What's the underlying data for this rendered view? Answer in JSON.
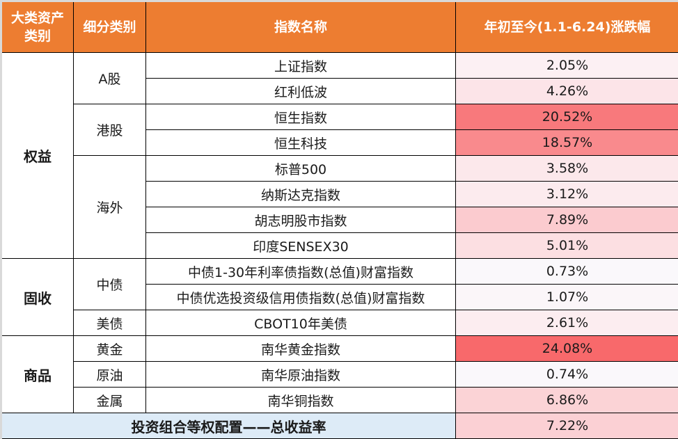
{
  "header": {
    "major_category": "大类资产类别",
    "major_category_line1": "大类资产",
    "major_category_line2": "类别",
    "sub_category": "细分类别",
    "index_name": "指数名称",
    "ytd_change": "年初至今(1.1-6.24)涨跌幅"
  },
  "groups": [
    {
      "major": "权益",
      "subs": [
        {
          "sub": "A股",
          "rows": [
            {
              "name": "上证指数",
              "value": "2.05%",
              "color": "#fcf0f3"
            },
            {
              "name": "红利低波",
              "value": "4.26%",
              "color": "#fce4e8"
            }
          ]
        },
        {
          "sub": "港股",
          "rows": [
            {
              "name": "恒生指数",
              "value": "20.52%",
              "color": "#f8797c"
            },
            {
              "name": "恒生科技",
              "value": "18.57%",
              "color": "#f98a8d"
            }
          ]
        },
        {
          "sub": "海外",
          "rows": [
            {
              "name": "标普500",
              "value": "3.58%",
              "color": "#fce8eb"
            },
            {
              "name": "纳斯达克指数",
              "value": "3.12%",
              "color": "#fcebee"
            },
            {
              "name": "胡志明股市指数",
              "value": "7.89%",
              "color": "#fbcbcf"
            },
            {
              "name": "印度SENSEX30",
              "value": "5.01%",
              "color": "#fcdfe2"
            }
          ]
        }
      ]
    },
    {
      "major": "固收",
      "subs": [
        {
          "sub": "中债",
          "rows": [
            {
              "name": "中债1-30年利率债指数(总值)财富指数",
              "value": "0.73%",
              "color": "#faf8fb"
            },
            {
              "name": "中债优选投资级信用债指数(总值)财富指数",
              "value": "1.07%",
              "color": "#fbf6f9"
            }
          ]
        },
        {
          "sub": "美债",
          "rows": [
            {
              "name": "CBOT10年美债",
              "value": "2.61%",
              "color": "#fcedf0"
            }
          ]
        }
      ]
    },
    {
      "major": "商品",
      "subs": [
        {
          "sub": "黄金",
          "rows": [
            {
              "name": "南华黄金指数",
              "value": "24.08%",
              "color": "#f8696b"
            }
          ]
        },
        {
          "sub": "原油",
          "rows": [
            {
              "name": "南华原油指数",
              "value": "0.74%",
              "color": "#faf8fb"
            }
          ]
        },
        {
          "sub": "金属",
          "rows": [
            {
              "name": "南华铜指数",
              "value": "6.86%",
              "color": "#fbd3d6"
            }
          ]
        }
      ]
    }
  ],
  "summary": {
    "label": "投资组合等权配置——总收益率",
    "value": "7.22%",
    "color": "#fbd0d4"
  },
  "colors": {
    "header_bg": "#ed7d31",
    "header_text": "#ffffff",
    "summary_label_bg": "#ddebf7",
    "max_heat": "#f8696b"
  }
}
